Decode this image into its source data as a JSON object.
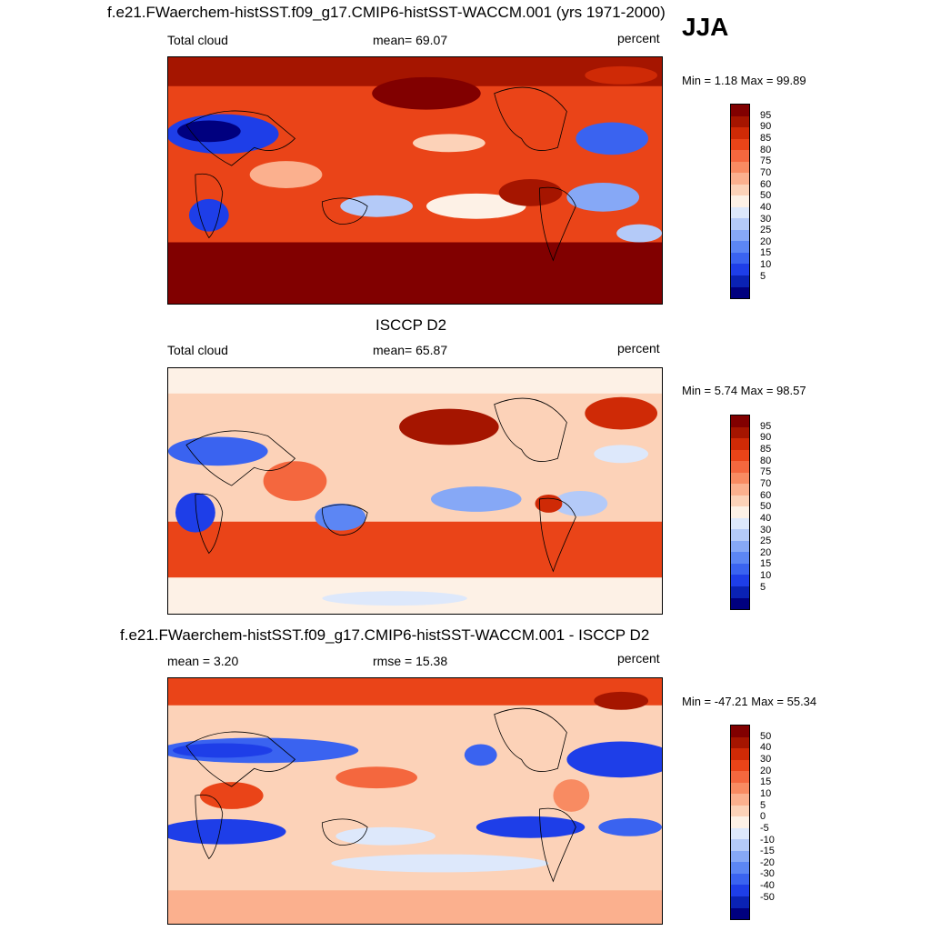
{
  "season": "JJA",
  "colors": {
    "total_cloud_scale": [
      "#00007f",
      "#0a22b4",
      "#1e3ee8",
      "#3a63f0",
      "#5c86f4",
      "#86a8f6",
      "#b4caf8",
      "#dde8fb",
      "#fdf1e6",
      "#fcd2b8",
      "#fbb08e",
      "#f88b62",
      "#f4673e",
      "#ea4418",
      "#cf2a06",
      "#a51500",
      "#810000"
    ],
    "difference_scale": [
      "#00007f",
      "#0a22b4",
      "#1e3ee8",
      "#3a63f0",
      "#5c86f4",
      "#86a8f6",
      "#b4caf8",
      "#dde8fb",
      "#fdf1e6",
      "#fcd2b8",
      "#fbb08e",
      "#f88b62",
      "#f4673e",
      "#ea4418",
      "#cf2a06",
      "#a51500",
      "#810000"
    ]
  },
  "panels": [
    {
      "title": "f.e21.FWaerchem-histSST.f09_g17.CMIP6-histSST-WACCM.001 (yrs 1971-2000)",
      "left_label": "Total cloud",
      "center_label": "mean=  69.07",
      "right_label": "percent",
      "minmax": "Min =   1.18 Max =  99.89",
      "colorbar_labels": [
        "95",
        "90",
        "85",
        "80",
        "75",
        "70",
        "60",
        "50",
        "40",
        "30",
        "25",
        "20",
        "15",
        "10",
        "5"
      ]
    },
    {
      "title": "ISCCP D2",
      "left_label": "Total cloud",
      "center_label": "mean=  65.87",
      "right_label": "percent",
      "minmax": "Min =   5.74 Max =  98.57",
      "colorbar_labels": [
        "95",
        "90",
        "85",
        "80",
        "75",
        "70",
        "60",
        "50",
        "40",
        "30",
        "25",
        "20",
        "15",
        "10",
        "5"
      ]
    },
    {
      "title": "f.e21.FWaerchem-histSST.f09_g17.CMIP6-histSST-WACCM.001 - ISCCP D2",
      "left_label": "mean =   3.20",
      "center_label": "rmse =  15.38",
      "right_label": "percent",
      "minmax": "Min = -47.21 Max =  55.34",
      "colorbar_labels": [
        "50",
        "40",
        "30",
        "20",
        "15",
        "10",
        "5",
        "0",
        "-5",
        "-10",
        "-15",
        "-20",
        "-30",
        "-40",
        "-50"
      ]
    }
  ]
}
